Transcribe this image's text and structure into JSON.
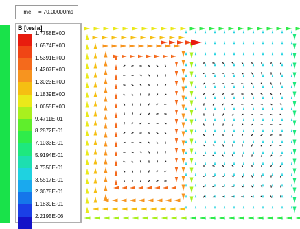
{
  "time_readout": {
    "label": "Time",
    "value": "= 70.00000ms"
  },
  "legend": {
    "title": "B [tesla]",
    "entries": [
      {
        "label": "1.7758E+00",
        "color": "#e81c0e"
      },
      {
        "label": "1.6574E+00",
        "color": "#f04515"
      },
      {
        "label": "1.5391E+00",
        "color": "#f46a1c"
      },
      {
        "label": "1.4207E+00",
        "color": "#f7941f"
      },
      {
        "label": "1.3023E+00",
        "color": "#f5bf12"
      },
      {
        "label": "1.1839E+00",
        "color": "#eae91a"
      },
      {
        "label": "1.0655E+00",
        "color": "#a9f01e"
      },
      {
        "label": "9.4711E-01",
        "color": "#5fee2c"
      },
      {
        "label": "8.2872E-01",
        "color": "#2fec4a"
      },
      {
        "label": "7.1033E-01",
        "color": "#1ee87e"
      },
      {
        "label": "5.9194E-01",
        "color": "#1ddfb0"
      },
      {
        "label": "4.7356E-01",
        "color": "#1fd2e0"
      },
      {
        "label": "3.5517E-01",
        "color": "#1aa9ee"
      },
      {
        "label": "2.3678E-01",
        "color": "#1576ea"
      },
      {
        "label": "1.1839E-01",
        "color": "#1a3fe6"
      },
      {
        "label": "2.2195E-06",
        "color": "#1512c8"
      }
    ]
  }
}
